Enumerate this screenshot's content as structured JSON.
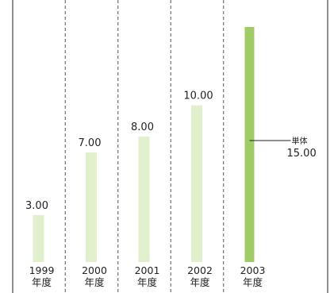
{
  "chart_data": {
    "type": "bar",
    "categories": [
      "1999\n年度",
      "2000\n年度",
      "2001\n年度",
      "2002\n年度",
      "2003\n年度"
    ],
    "values": [
      3.0,
      7.0,
      8.0,
      10.0,
      15.0
    ],
    "value_labels": [
      "3.00",
      "7.00",
      "8.00",
      "10.00",
      ""
    ],
    "ylim": [
      0,
      15.5
    ],
    "grid": "vertical-dashed-separators",
    "colors": {
      "bar": "#e2efcc",
      "highlight_bar": "#9fcc66",
      "separator": "#555555",
      "frame": "#222222"
    },
    "highlight_index": 4,
    "annotation": {
      "category_index": 4,
      "label": "単体",
      "value_text": "15.00"
    }
  }
}
